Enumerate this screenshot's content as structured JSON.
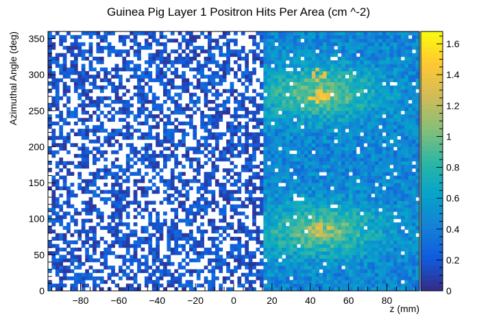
{
  "chart_data": {
    "type": "heatmap",
    "title": "Guinea Pig Layer 1 Positron Hits Per Area (cm ^-2)",
    "xlabel": "z (mm)",
    "ylabel": "Azimuthal Angle (deg)",
    "xlim": [
      -97,
      97
    ],
    "ylim": [
      0,
      360
    ],
    "zlim": [
      0,
      1.68
    ],
    "x_ticks": [
      -80,
      -60,
      -40,
      -20,
      0,
      20,
      40,
      60,
      80
    ],
    "x_tick_labels": [
      "−80",
      "−60",
      "−40",
      "−20",
      "0",
      "20",
      "40",
      "60",
      "80"
    ],
    "y_ticks": [
      0,
      50,
      100,
      150,
      200,
      250,
      300,
      350
    ],
    "y_tick_labels": [
      "0",
      "50",
      "100",
      "150",
      "200",
      "250",
      "300",
      "350"
    ],
    "z_ticks": [
      0,
      0.2,
      0.4,
      0.6,
      0.8,
      1,
      1.2,
      1.4,
      1.6
    ],
    "z_tick_labels": [
      "0",
      "0.2",
      "0.4",
      "0.6",
      "0.8",
      "1",
      "1.2",
      "1.4",
      "1.6"
    ],
    "bins": {
      "x": 100,
      "y": 72
    },
    "palette": [
      "#352a87",
      "#0f5cdd",
      "#1481d6",
      "#06a4ca",
      "#2eb7a4",
      "#87bf77",
      "#d1bb59",
      "#fec832",
      "#f9fb0e"
    ],
    "grid": false,
    "legend": "colorbar-right",
    "regions": {
      "low_density": {
        "x_range": [
          -97,
          15
        ],
        "typical_value": 0.15,
        "occupancy": 0.55
      },
      "high_density": {
        "x_range": [
          15,
          97
        ],
        "typical_value": 0.4,
        "occupancy": 0.97
      },
      "peaks": [
        {
          "x": 45,
          "y": 270,
          "value": 1.5
        },
        {
          "x": 45,
          "y": 300,
          "value": 1.4
        },
        {
          "x": 45,
          "y": 85,
          "value": 1.4
        },
        {
          "x": 50,
          "y": 80,
          "value": 1.3
        }
      ]
    }
  }
}
